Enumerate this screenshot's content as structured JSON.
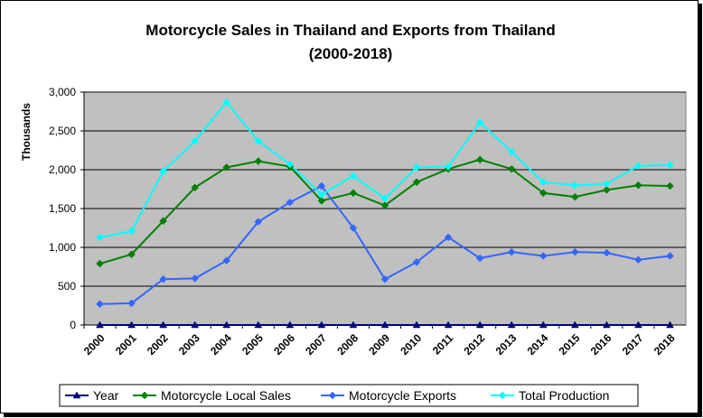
{
  "chart_data": {
    "type": "line",
    "title": "Motorcycle Sales in Thailand and Exports from Thailand",
    "subtitle": "(2000-2018)",
    "xlabel": "",
    "ylabel": "Thousands",
    "ylim": [
      0,
      3000
    ],
    "yticks": [
      "0",
      "500",
      "1,000",
      "1,500",
      "2,000",
      "2,500",
      "3,000"
    ],
    "ytick_values": [
      0,
      500,
      1000,
      1500,
      2000,
      2500,
      3000
    ],
    "categories": [
      "2000",
      "2001",
      "2002",
      "2003",
      "2004",
      "2005",
      "2006",
      "2007",
      "2008",
      "2009",
      "2010",
      "2011",
      "2012",
      "2013",
      "2014",
      "2015",
      "2016",
      "2017",
      "2018"
    ],
    "grid": true,
    "legend_position": "bottom",
    "plot_background": "#c0c0c0",
    "series": [
      {
        "name": "Year",
        "color": "#000080",
        "marker": "triangle",
        "values": [
          0,
          0,
          0,
          0,
          0,
          0,
          0,
          0,
          0,
          0,
          0,
          0,
          0,
          0,
          0,
          0,
          0,
          0,
          0
        ]
      },
      {
        "name": "Motorcycle Local Sales",
        "color": "#008000",
        "marker": "diamond",
        "values": [
          790,
          910,
          1340,
          1770,
          2030,
          2110,
          2040,
          1600,
          1700,
          1540,
          1840,
          2010,
          2130,
          2010,
          1700,
          1650,
          1740,
          1800,
          1790
        ]
      },
      {
        "name": "Motorcycle Exports",
        "color": "#3366ff",
        "marker": "diamond",
        "values": [
          270,
          280,
          590,
          600,
          830,
          1330,
          1580,
          1790,
          1250,
          590,
          810,
          1130,
          860,
          940,
          890,
          940,
          930,
          840,
          890
        ]
      },
      {
        "name": "Total Production",
        "color": "#00ffff",
        "marker": "diamond",
        "values": [
          1130,
          1210,
          1980,
          2370,
          2870,
          2370,
          2070,
          1680,
          1920,
          1630,
          2030,
          2040,
          2610,
          2230,
          1840,
          1800,
          1820,
          2050,
          2060
        ]
      }
    ]
  }
}
